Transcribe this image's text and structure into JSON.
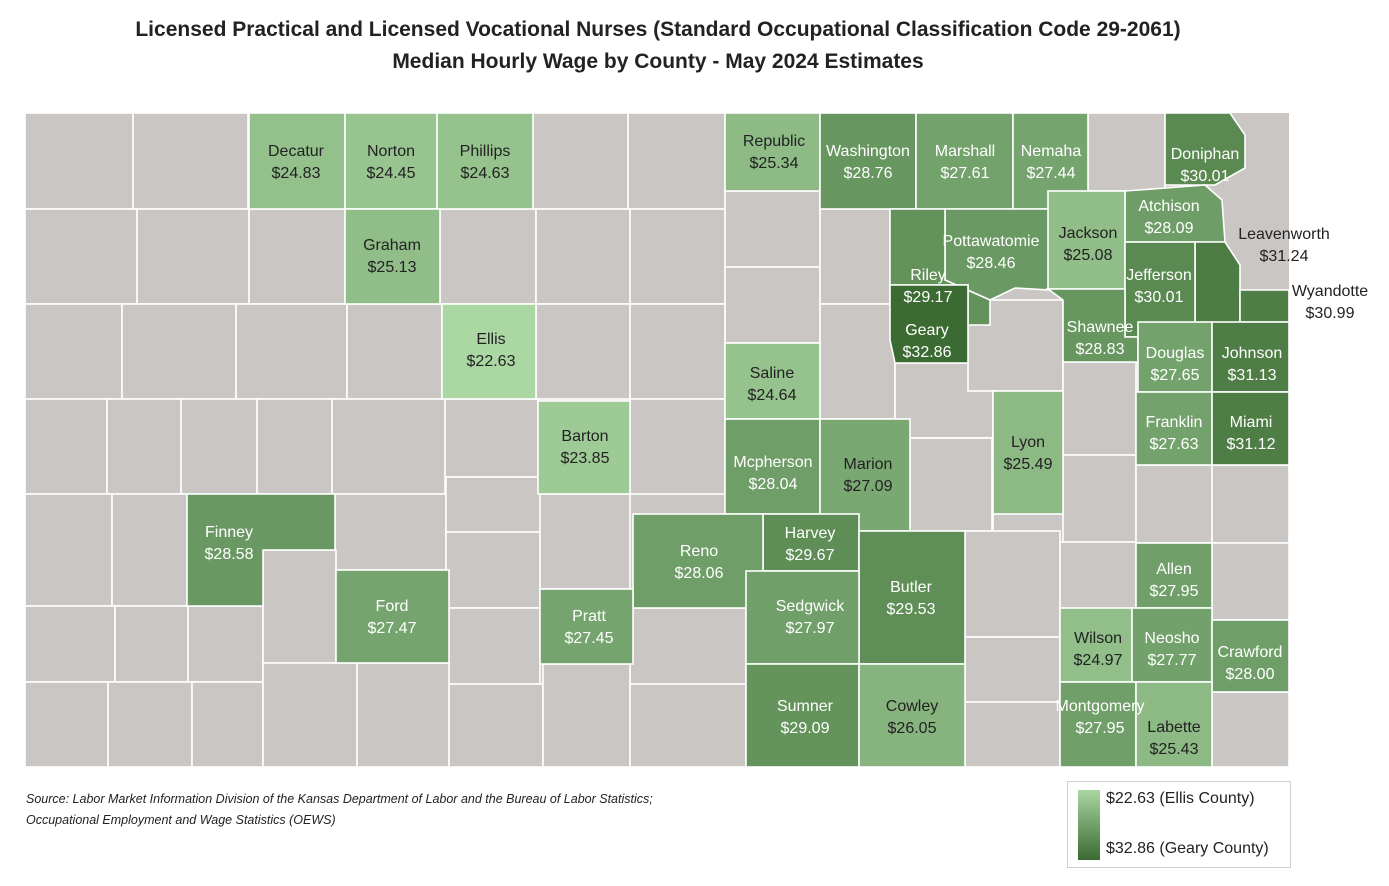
{
  "title": {
    "line1": "Licensed Practical and Licensed Vocational Nurses (Standard Occupational Classification Code 29-2061)",
    "line2": "Median Hourly Wage by County - May 2024 Estimates"
  },
  "colors": {
    "no_data": "#cac6c4",
    "scale_min": "#abd7a3",
    "scale_max": "#3b6b33",
    "border": "#ffffff"
  },
  "wage_range": {
    "min": 22.63,
    "max": 32.86
  },
  "counties": [
    {
      "name": "Decatur",
      "value": "$24.83"
    },
    {
      "name": "Norton",
      "value": "$24.45"
    },
    {
      "name": "Phillips",
      "value": "$24.63"
    },
    {
      "name": "Republic",
      "value": "$25.34"
    },
    {
      "name": "Washington",
      "value": "$28.76"
    },
    {
      "name": "Marshall",
      "value": "$27.61"
    },
    {
      "name": "Nemaha",
      "value": "$27.44"
    },
    {
      "name": "Doniphan",
      "value": "$30.01"
    },
    {
      "name": "Graham",
      "value": "$25.13"
    },
    {
      "name": "Atchison",
      "value": "$28.09"
    },
    {
      "name": "Pottawatomie",
      "value": "$28.46"
    },
    {
      "name": "Jackson",
      "value": "$25.08"
    },
    {
      "name": "Leavenworth",
      "value": "$31.24"
    },
    {
      "name": "Riley",
      "value": "$29.17"
    },
    {
      "name": "Jefferson",
      "value": "$30.01"
    },
    {
      "name": "Wyandotte",
      "value": "$30.99"
    },
    {
      "name": "Ellis",
      "value": "$22.63"
    },
    {
      "name": "Geary",
      "value": "$32.86"
    },
    {
      "name": "Shawnee",
      "value": "$28.83"
    },
    {
      "name": "Saline",
      "value": "$24.64"
    },
    {
      "name": "Douglas",
      "value": "$27.65"
    },
    {
      "name": "Johnson",
      "value": "$31.13"
    },
    {
      "name": "Barton",
      "value": "$23.85"
    },
    {
      "name": "Franklin",
      "value": "$27.63"
    },
    {
      "name": "Miami",
      "value": "$31.12"
    },
    {
      "name": "Lyon",
      "value": "$25.49"
    },
    {
      "name": "Mcpherson",
      "value": "$28.04"
    },
    {
      "name": "Marion",
      "value": "$27.09"
    },
    {
      "name": "Finney",
      "value": "$28.58"
    },
    {
      "name": "Harvey",
      "value": "$29.67"
    },
    {
      "name": "Reno",
      "value": "$28.06"
    },
    {
      "name": "Butler",
      "value": "$29.53"
    },
    {
      "name": "Allen",
      "value": "$27.95"
    },
    {
      "name": "Ford",
      "value": "$27.47"
    },
    {
      "name": "Sedgwick",
      "value": "$27.97"
    },
    {
      "name": "Pratt",
      "value": "$27.45"
    },
    {
      "name": "Wilson",
      "value": "$24.97"
    },
    {
      "name": "Neosho",
      "value": "$27.77"
    },
    {
      "name": "Crawford",
      "value": "$28.00"
    },
    {
      "name": "Sumner",
      "value": "$29.09"
    },
    {
      "name": "Cowley",
      "value": "$26.05"
    },
    {
      "name": "Montgomery",
      "value": "$27.95"
    },
    {
      "name": "Labette",
      "value": "$25.43"
    }
  ],
  "source": {
    "line1": "Source: Labor Market Information Division of the Kansas Department of Labor and the Bureau of Labor Statistics;",
    "line2": "Occupational Employment and Wage Statistics (OEWS)"
  },
  "legend": {
    "min_label": "$22.63 (Ellis County)",
    "max_label": "$32.86 (Geary County)"
  }
}
